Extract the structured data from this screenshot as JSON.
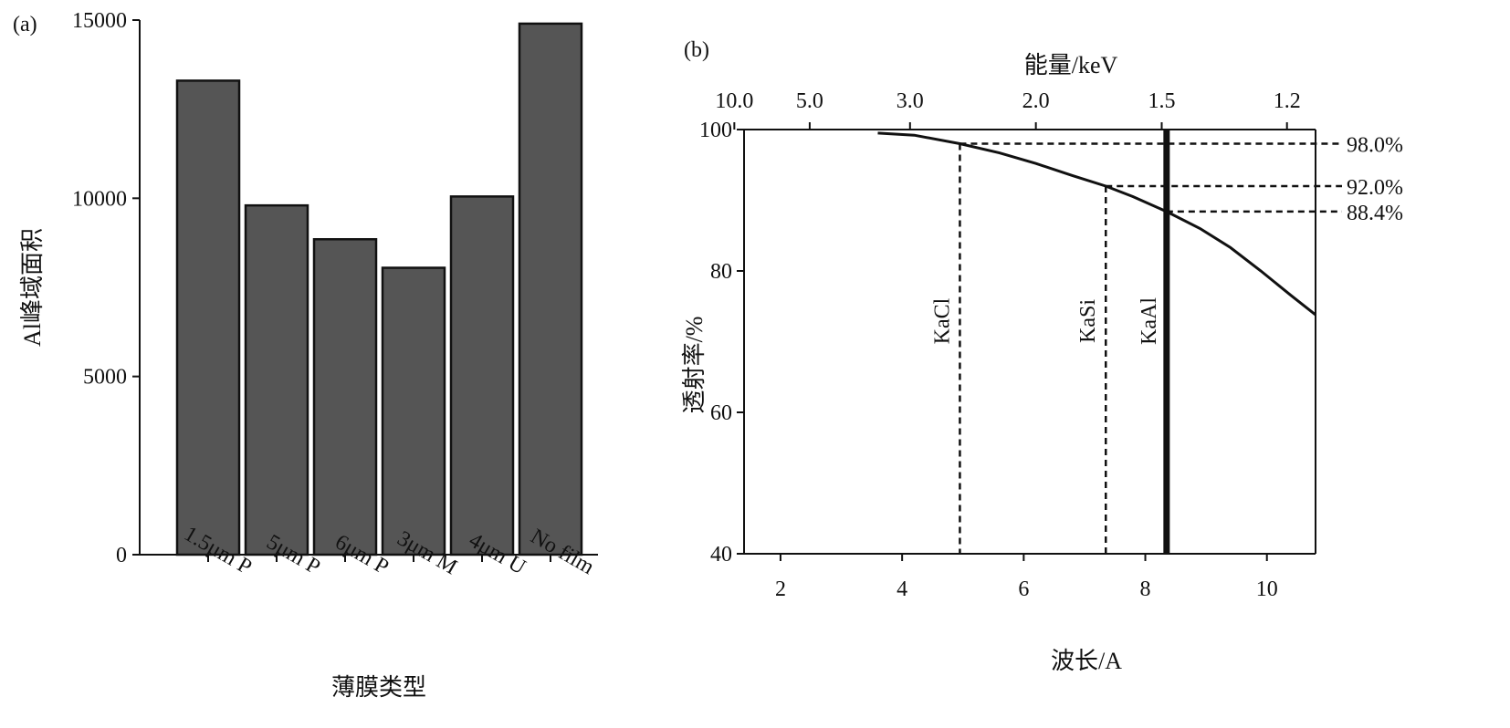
{
  "chart_data": [
    {
      "panel_label": "(a)",
      "type": "bar",
      "categories": [
        "1.5μm P",
        "5μm P",
        "6μm P",
        "3μm M",
        "4μm U",
        "No film"
      ],
      "values": [
        13300,
        9800,
        8850,
        8050,
        10050,
        14900
      ],
      "xlabel": "薄膜类型",
      "ylabel": "Al峰域面积",
      "ylim": [
        0,
        15000
      ],
      "yticks": [
        0,
        5000,
        10000,
        15000
      ],
      "bar_color": "#555555",
      "grid": false
    },
    {
      "panel_label": "(b)",
      "type": "line",
      "xlabel": "波长/A",
      "ylabel": "透射率/%",
      "top_xlabel": "能量/keV",
      "xlim": [
        1.4,
        10.8
      ],
      "ylim": [
        40,
        100
      ],
      "xticks": [
        2,
        4,
        6,
        8,
        10
      ],
      "yticks": [
        40,
        60,
        80,
        100
      ],
      "top_xticks": [
        {
          "label": "10.0",
          "x": 1.24
        },
        {
          "label": "5.0",
          "x": 2.48
        },
        {
          "label": "3.0",
          "x": 4.13
        },
        {
          "label": "2.0",
          "x": 6.2
        },
        {
          "label": "1.5",
          "x": 8.27
        },
        {
          "label": "1.2",
          "x": 10.33
        }
      ],
      "series": [
        {
          "x": [
            3.6,
            4.2,
            4.95,
            5.6,
            6.2,
            6.8,
            7.35,
            7.8,
            8.35,
            8.9,
            9.4,
            9.9,
            10.4,
            10.8
          ],
          "y": [
            99.5,
            99.2,
            98.0,
            96.7,
            95.2,
            93.5,
            92.0,
            90.5,
            88.4,
            86.0,
            83.3,
            80.0,
            76.5,
            73.8
          ]
        }
      ],
      "vlines": [
        {
          "label": "KaCl",
          "x": 4.95,
          "style": "dashed"
        },
        {
          "label": "KaSi",
          "x": 7.35,
          "style": "dashed"
        },
        {
          "label": "KaAl",
          "x": 8.35,
          "style": "solid-thick"
        }
      ],
      "hlines": [
        {
          "label": "98.0%",
          "y": 98.0,
          "x_from": 4.95
        },
        {
          "label": "92.0%",
          "y": 92.0,
          "x_from": 7.35
        },
        {
          "label": "88.4%",
          "y": 88.4,
          "x_from": 8.35
        }
      ],
      "grid": false
    }
  ]
}
